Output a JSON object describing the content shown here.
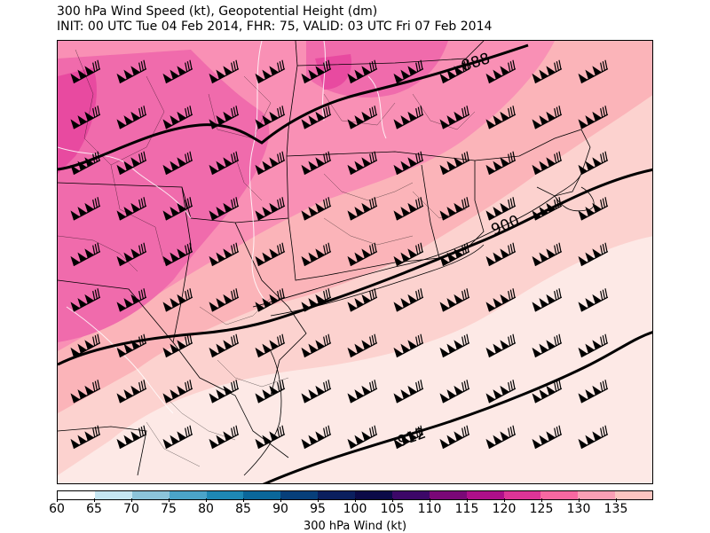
{
  "header": {
    "title_line1": "300 hPa Wind Speed (kt), Geopotential Height (dm)",
    "title_line2": "INIT: 00 UTC Tue 04 Feb 2014, FHR: 75, VALID: 03 UTC Fri 07 Feb 2014"
  },
  "map": {
    "contour_labels": [
      "888",
      "900",
      "912"
    ],
    "contour_color": "#000000",
    "fill_colors": {
      "light": "#fde9e6",
      "light_pink": "#fcd2cf",
      "pink": "#fbb4b9",
      "mid_pink": "#f990b5",
      "strong_pink": "#f06bac",
      "magenta": "#e84aa0"
    },
    "barb_icon": "wind-barb-icon"
  },
  "colorbar": {
    "label": "300 hPa Wind (kt)",
    "ticks": [
      "60",
      "65",
      "70",
      "75",
      "80",
      "85",
      "90",
      "95",
      "100",
      "105",
      "110",
      "115",
      "120",
      "125",
      "130",
      "135"
    ],
    "colors": [
      "#ffffff",
      "#c6e6f2",
      "#8cc4da",
      "#4ba4c9",
      "#1e88b4",
      "#0a679a",
      "#073f7a",
      "#0a1f5e",
      "#0b0a48",
      "#3c0768",
      "#7a0877",
      "#ae0f8a",
      "#dd3497",
      "#f768a1",
      "#fa9fb5",
      "#fcc5c0"
    ]
  }
}
